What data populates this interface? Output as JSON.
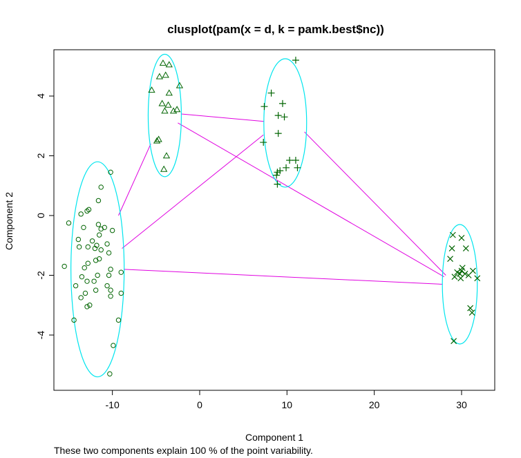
{
  "chart_data": {
    "type": "scatter",
    "title": "clusplot(pam(x = d, k = pamk.best$nc))",
    "xlabel": "Component 1",
    "ylabel": "Component 2",
    "footnote": "These two components explain 100 % of the point variability.",
    "xlim": [
      -16.7,
      33.8
    ],
    "ylim": [
      -5.85,
      5.55
    ],
    "xticks": [
      -10,
      0,
      10,
      20,
      30
    ],
    "yticks": [
      -4,
      -2,
      0,
      2,
      4
    ],
    "xtick_labels": [
      "-10",
      "0",
      "10",
      "20",
      "30"
    ],
    "ytick_labels": [
      "-4",
      "-2",
      "0",
      "2",
      "4"
    ],
    "colors": {
      "points": "#006400",
      "ellipses": "#00E5EE",
      "connectors": "#E000E0",
      "frame": "#000000"
    },
    "clusters": [
      {
        "id": 1,
        "marker": "circle",
        "center": [
          -11.7,
          -1.8
        ],
        "ellipse": {
          "cx": -11.7,
          "cy": -1.8,
          "rx": 3.05,
          "ry": 3.6
        },
        "points": [
          [
            -10.2,
            1.45
          ],
          [
            -11.3,
            0.95
          ],
          [
            -11.6,
            0.5
          ],
          [
            -12.7,
            0.2
          ],
          [
            -13.6,
            0.05
          ],
          [
            -12.9,
            0.15
          ],
          [
            -15.0,
            -0.25
          ],
          [
            -11.6,
            -0.3
          ],
          [
            -10.9,
            -0.4
          ],
          [
            -13.3,
            -0.4
          ],
          [
            -11.3,
            -0.45
          ],
          [
            -10.0,
            -0.5
          ],
          [
            -11.5,
            -0.65
          ],
          [
            -13.9,
            -0.8
          ],
          [
            -12.3,
            -0.85
          ],
          [
            -11.8,
            -1.0
          ],
          [
            -10.6,
            -0.95
          ],
          [
            -12.0,
            -1.1
          ],
          [
            -12.8,
            -1.05
          ],
          [
            -11.3,
            -1.15
          ],
          [
            -13.8,
            -1.05
          ],
          [
            -10.4,
            -1.25
          ],
          [
            -11.5,
            -1.45
          ],
          [
            -11.9,
            -1.5
          ],
          [
            -12.8,
            -1.6
          ],
          [
            -15.5,
            -1.7
          ],
          [
            -13.2,
            -1.75
          ],
          [
            -10.2,
            -1.8
          ],
          [
            -9.0,
            -1.9
          ],
          [
            -11.7,
            -2.0
          ],
          [
            -13.5,
            -2.05
          ],
          [
            -10.4,
            -2.0
          ],
          [
            -12.9,
            -2.2
          ],
          [
            -14.2,
            -2.35
          ],
          [
            -10.6,
            -2.35
          ],
          [
            -10.2,
            -2.5
          ],
          [
            -11.9,
            -2.5
          ],
          [
            -9.0,
            -2.6
          ],
          [
            -10.2,
            -2.7
          ],
          [
            -13.1,
            -2.6
          ],
          [
            -13.6,
            -2.75
          ],
          [
            -12.6,
            -3.0
          ],
          [
            -12.9,
            -3.05
          ],
          [
            -14.4,
            -3.5
          ],
          [
            -9.3,
            -3.5
          ],
          [
            -9.9,
            -4.35
          ],
          [
            -10.3,
            -5.3
          ],
          [
            -12.1,
            -2.2
          ]
        ]
      },
      {
        "id": 2,
        "marker": "triangle",
        "center": [
          -4.0,
          3.35
        ],
        "ellipse": {
          "cx": -4.0,
          "cy": 3.35,
          "rx": 1.9,
          "ry": 2.05
        },
        "points": [
          [
            -4.2,
            5.1
          ],
          [
            -3.5,
            5.05
          ],
          [
            -3.9,
            4.7
          ],
          [
            -4.6,
            4.65
          ],
          [
            -2.3,
            4.35
          ],
          [
            -5.5,
            4.2
          ],
          [
            -3.5,
            4.1
          ],
          [
            -4.3,
            3.75
          ],
          [
            -3.6,
            3.7
          ],
          [
            -2.6,
            3.55
          ],
          [
            -4.0,
            3.5
          ],
          [
            -3.0,
            3.5
          ],
          [
            -4.7,
            2.55
          ],
          [
            -4.9,
            2.5
          ],
          [
            -3.8,
            2.0
          ],
          [
            -4.1,
            1.55
          ]
        ]
      },
      {
        "id": 3,
        "marker": "plus",
        "center": [
          9.8,
          3.1
        ],
        "ellipse": {
          "cx": 9.8,
          "cy": 3.1,
          "rx": 2.45,
          "ry": 2.15
        },
        "points": [
          [
            11.0,
            5.2
          ],
          [
            8.2,
            4.1
          ],
          [
            7.4,
            3.65
          ],
          [
            9.5,
            3.75
          ],
          [
            9.0,
            3.35
          ],
          [
            9.7,
            3.3
          ],
          [
            9.0,
            2.75
          ],
          [
            7.3,
            2.45
          ],
          [
            10.3,
            1.85
          ],
          [
            11.0,
            1.85
          ],
          [
            9.9,
            1.6
          ],
          [
            11.2,
            1.6
          ],
          [
            9.2,
            1.5
          ],
          [
            8.9,
            1.45
          ],
          [
            8.8,
            1.35
          ],
          [
            8.9,
            1.05
          ]
        ]
      },
      {
        "id": 4,
        "marker": "cross",
        "center": [
          29.8,
          -2.3
        ],
        "ellipse": {
          "cx": 29.8,
          "cy": -2.3,
          "rx": 2.0,
          "ry": 2.0
        },
        "points": [
          [
            29.0,
            -0.65
          ],
          [
            30.0,
            -0.75
          ],
          [
            28.9,
            -1.1
          ],
          [
            30.5,
            -1.1
          ],
          [
            28.7,
            -1.45
          ],
          [
            30.1,
            -1.75
          ],
          [
            31.3,
            -1.85
          ],
          [
            29.8,
            -1.95
          ],
          [
            30.0,
            -1.85
          ],
          [
            29.5,
            -1.9
          ],
          [
            30.4,
            -1.95
          ],
          [
            30.8,
            -2.0
          ],
          [
            29.2,
            -2.05
          ],
          [
            29.9,
            -2.1
          ],
          [
            31.8,
            -2.1
          ],
          [
            31.0,
            -3.1
          ],
          [
            31.2,
            -3.25
          ],
          [
            29.1,
            -4.2
          ]
        ]
      }
    ],
    "connectors": [
      {
        "from": 1,
        "to": 2,
        "line": [
          [
            -9.3,
            0.0
          ],
          [
            -5.6,
            2.4
          ]
        ]
      },
      {
        "from": 1,
        "to": 3,
        "line": [
          [
            -8.9,
            -1.1
          ],
          [
            7.3,
            2.7
          ]
        ]
      },
      {
        "from": 1,
        "to": 4,
        "line": [
          [
            -8.7,
            -1.8
          ],
          [
            27.8,
            -2.3
          ]
        ]
      },
      {
        "from": 2,
        "to": 3,
        "line": [
          [
            -2.1,
            3.4
          ],
          [
            7.4,
            3.15
          ]
        ]
      },
      {
        "from": 2,
        "to": 4,
        "line": [
          [
            -2.5,
            3.1
          ],
          [
            28.0,
            -2.05
          ]
        ]
      },
      {
        "from": 3,
        "to": 4,
        "line": [
          [
            12.0,
            2.8
          ],
          [
            28.2,
            -2.0
          ]
        ]
      }
    ]
  }
}
